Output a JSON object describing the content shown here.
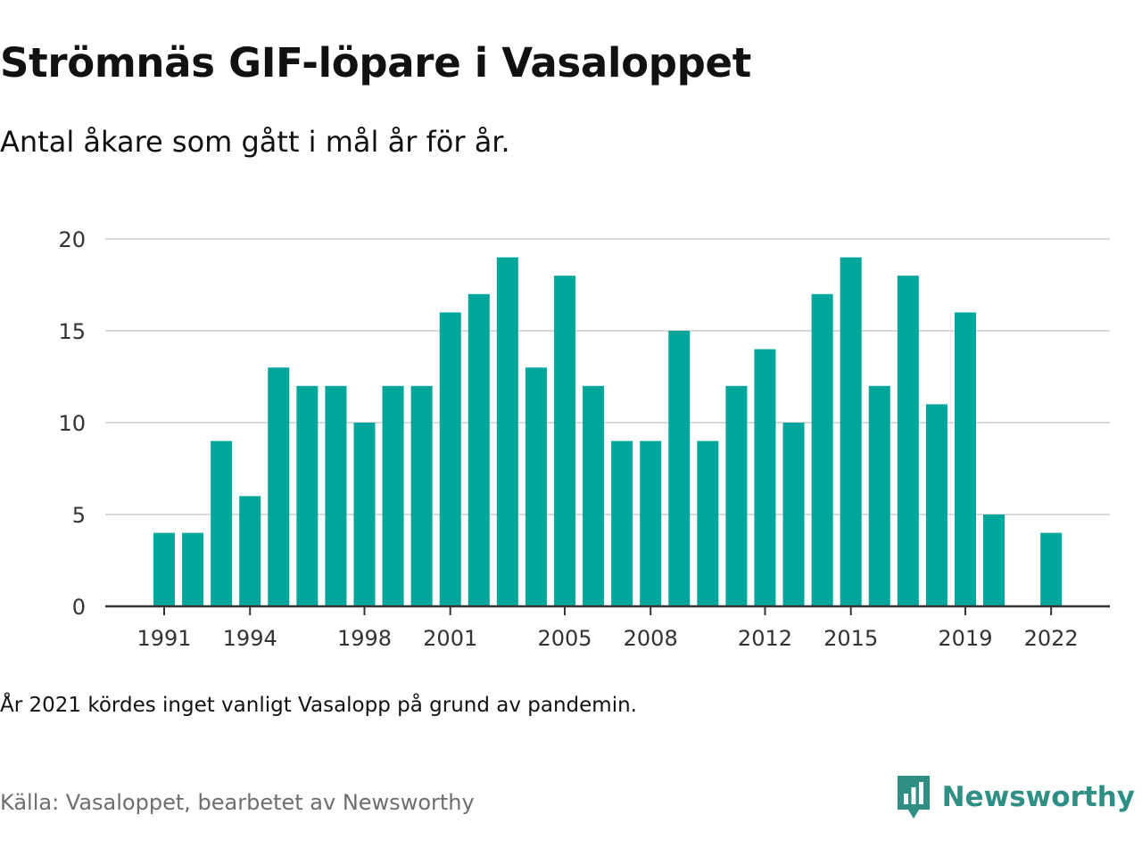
{
  "title": "Strömnäs GIF-löpare i Vasaloppet",
  "subtitle": "Antal åkare som gått i mål år för år.",
  "note": "År 2021 kördes inget vanligt Vasalopp på grund av pandemin.",
  "source": "Källa: Vasaloppet, bearbetet av Newsworthy",
  "brand": {
    "name": "Newsworthy",
    "icon": "newsworthy-logo-icon",
    "color": "#2f8f85"
  },
  "chart_data": {
    "type": "bar",
    "title": "Strömnäs GIF-löpare i Vasaloppet",
    "subtitle": "Antal åkare som gått i mål år för år.",
    "categories": [
      1991,
      1992,
      1993,
      1994,
      1995,
      1996,
      1997,
      1998,
      1999,
      2000,
      2001,
      2002,
      2003,
      2004,
      2005,
      2006,
      2007,
      2008,
      2009,
      2010,
      2011,
      2012,
      2013,
      2014,
      2015,
      2016,
      2017,
      2018,
      2019,
      2020,
      2021,
      2022
    ],
    "values": [
      4,
      4,
      9,
      6,
      13,
      12,
      12,
      10,
      12,
      12,
      16,
      17,
      19,
      13,
      18,
      12,
      9,
      9,
      15,
      9,
      12,
      14,
      10,
      17,
      19,
      12,
      18,
      11,
      16,
      5,
      null,
      4
    ],
    "x_tick_labels": [
      "1991",
      "1994",
      "1998",
      "2001",
      "2005",
      "2008",
      "2012",
      "2015",
      "2019",
      "2022"
    ],
    "y_ticks": [
      0,
      5,
      10,
      15,
      20
    ],
    "ylim": [
      0,
      20
    ],
    "grid": true,
    "bar_color": "#00a69c",
    "grid_color": "#d9d9d9",
    "axis_color": "#333333"
  }
}
